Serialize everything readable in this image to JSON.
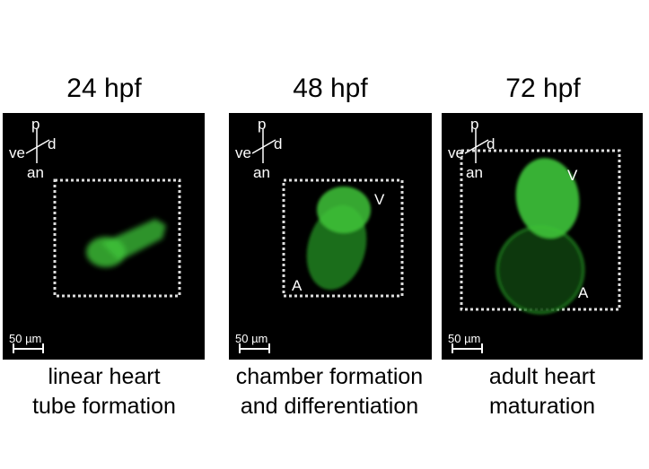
{
  "panels": [
    {
      "title": "24 hpf",
      "caption_line1": "linear heart",
      "caption_line2": "tube formation",
      "scale_bar": "50 µm",
      "axes": {
        "p": "p",
        "d": "d",
        "ve": "ve",
        "an": "an"
      }
    },
    {
      "title": "48 hpf",
      "caption_line1": "chamber formation",
      "caption_line2": "and differentiation",
      "scale_bar": "50 µm",
      "axes": {
        "p": "p",
        "d": "d",
        "ve": "ve",
        "an": "an"
      },
      "labels": {
        "v": "V",
        "a": "A"
      }
    },
    {
      "title": "72 hpf",
      "caption_line1": "adult heart",
      "caption_line2": "maturation",
      "scale_bar": "50 µm",
      "axes": {
        "p": "p",
        "d": "d",
        "ve": "ve",
        "an": "an"
      },
      "labels": {
        "v": "V",
        "a": "A"
      }
    }
  ],
  "colors": {
    "fluorescence": "#3fd43a",
    "background": "#000000",
    "annotation": "#ffffff"
  }
}
